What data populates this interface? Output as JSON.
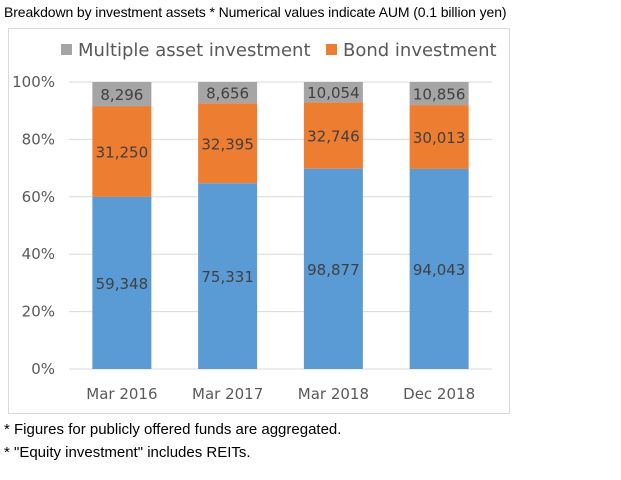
{
  "caption": "Breakdown by investment assets * Numerical values indicate AUM (0.1 billion yen)",
  "notes": [
    "* Figures for publicly offered funds are aggregated.",
    "* \"Equity investment\" includes REITs."
  ],
  "colors": {
    "equity": "#5b9bd5",
    "bond": "#ed7d31",
    "multiple": "#a5a5a5",
    "grid": "#d9d9d9"
  },
  "chart_data": {
    "type": "bar",
    "stacked": "percent",
    "categories": [
      "Mar 2016",
      "Mar 2017",
      "Mar 2018",
      "Dec 2018"
    ],
    "series": [
      {
        "values": [
          59348,
          75331,
          98877,
          94043
        ]
      },
      {
        "name": "Bond investment",
        "values": [
          31250,
          32395,
          32746,
          30013
        ]
      },
      {
        "name": "Multiple asset investment",
        "values": [
          8296,
          8656,
          10054,
          10856
        ]
      }
    ],
    "value_labels": [
      [
        "59,348",
        "75,331",
        "98,877",
        "94,043"
      ],
      [
        "31,250",
        "32,395",
        "32,746",
        "30,013"
      ],
      [
        "8,296",
        "8,656",
        "10,054",
        "10,856"
      ]
    ],
    "y_ticks": [
      "0%",
      "20%",
      "40%",
      "60%",
      "80%",
      "100%"
    ],
    "ylim": [
      0,
      100
    ],
    "grid": true,
    "legend": "top"
  }
}
